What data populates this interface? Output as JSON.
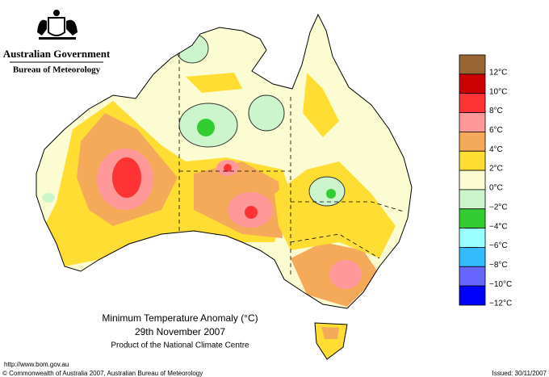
{
  "header": {
    "government": "Australian Government",
    "bureau": "Bureau of Meteorology"
  },
  "legend": {
    "items": [
      {
        "label": "12°C",
        "color": "#996633"
      },
      {
        "label": "10°C",
        "color": "#cc0000"
      },
      {
        "label": "8°C",
        "color": "#ff3333"
      },
      {
        "label": "6°C",
        "color": "#ff9999"
      },
      {
        "label": "4°C",
        "color": "#f5aa5a"
      },
      {
        "label": "2°C",
        "color": "#ffdd33"
      },
      {
        "label": "0°C",
        "color": "#fcfcd2"
      },
      {
        "label": "−2°C",
        "color": "#ccf5cc"
      },
      {
        "label": "−4°C",
        "color": "#33cc33"
      },
      {
        "label": "−6°C",
        "color": "#99ffff"
      },
      {
        "label": "−8°C",
        "color": "#33bbff"
      },
      {
        "label": "−10°C",
        "color": "#6666ff"
      },
      {
        "label": "−12°C",
        "color": "#0000ff"
      }
    ]
  },
  "title": {
    "line1": "Minimum Temperature Anomaly (°C)",
    "line2": "29th November 2007",
    "line3": "Product of the National Climate Centre"
  },
  "footer": {
    "url": "http://www.bom.gov.au",
    "copyright": "© Commonwealth of Australia 2007, Australian Bureau of Meteorology",
    "issued": "Issued: 30/11/2007"
  }
}
